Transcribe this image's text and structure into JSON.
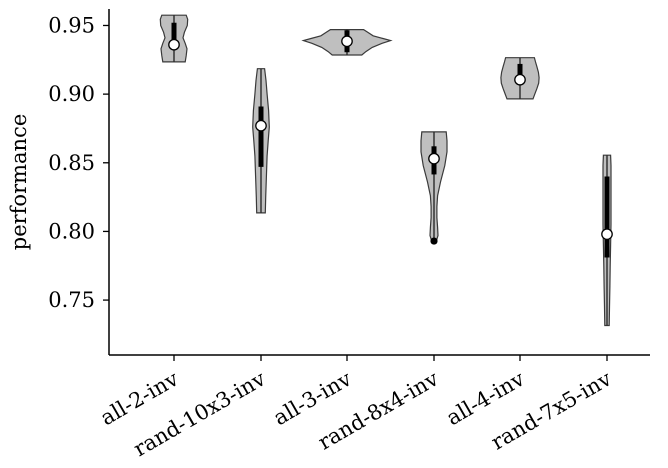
{
  "chart_data": {
    "type": "violin",
    "ylabel": "performance",
    "xlabel": "",
    "ylim": [
      0.71,
      0.962
    ],
    "yticks": [
      0.75,
      0.8,
      0.85,
      0.9,
      0.95
    ],
    "ytick_labels": [
      "0.75",
      "0.80",
      "0.85",
      "0.90",
      "0.95"
    ],
    "grid": false,
    "fill_color": "#bfbfbf",
    "categories": [
      "all-2-inv",
      "rand-10x3-inv",
      "all-3-inv",
      "rand-8x4-inv",
      "all-4-inv",
      "rand-7x5-inv"
    ],
    "violins": [
      {
        "category": "all-2-inv",
        "min": 0.9235,
        "max": 0.9575,
        "q1": 0.9335,
        "q3": 0.952,
        "median": 0.936,
        "outliers": [],
        "profile": [
          [
            0.9235,
            0.62
          ],
          [
            0.928,
            0.68
          ],
          [
            0.933,
            0.72
          ],
          [
            0.937,
            0.62
          ],
          [
            0.941,
            0.5
          ],
          [
            0.945,
            0.58
          ],
          [
            0.95,
            0.74
          ],
          [
            0.9545,
            0.76
          ],
          [
            0.9575,
            0.68
          ]
        ]
      },
      {
        "category": "rand-10x3-inv",
        "min": 0.8135,
        "max": 0.9185,
        "q1": 0.847,
        "q3": 0.891,
        "median": 0.877,
        "outliers": [],
        "profile": [
          [
            0.8135,
            0.24
          ],
          [
            0.825,
            0.26
          ],
          [
            0.84,
            0.3
          ],
          [
            0.855,
            0.34
          ],
          [
            0.866,
            0.4
          ],
          [
            0.876,
            0.46
          ],
          [
            0.888,
            0.42
          ],
          [
            0.9,
            0.34
          ],
          [
            0.91,
            0.28
          ],
          [
            0.9185,
            0.2
          ]
        ]
      },
      {
        "category": "all-3-inv",
        "min": 0.9285,
        "max": 0.947,
        "q1": 0.9305,
        "q3": 0.9465,
        "median": 0.9385,
        "outliers": [],
        "profile": [
          [
            0.9285,
            0.82
          ],
          [
            0.931,
            1.05
          ],
          [
            0.934,
            1.4
          ],
          [
            0.937,
            1.95
          ],
          [
            0.939,
            2.42
          ],
          [
            0.9405,
            2.0
          ],
          [
            0.9425,
            1.45
          ],
          [
            0.945,
            1.15
          ],
          [
            0.947,
            0.92
          ]
        ]
      },
      {
        "category": "rand-8x4-inv",
        "min": 0.7935,
        "max": 0.8725,
        "q1": 0.8415,
        "q3": 0.862,
        "median": 0.853,
        "outliers": [
          0.793
        ],
        "profile": [
          [
            0.7935,
            0.14
          ],
          [
            0.797,
            0.22
          ],
          [
            0.803,
            0.2
          ],
          [
            0.81,
            0.16
          ],
          [
            0.818,
            0.16
          ],
          [
            0.826,
            0.2
          ],
          [
            0.836,
            0.36
          ],
          [
            0.848,
            0.6
          ],
          [
            0.858,
            0.72
          ],
          [
            0.866,
            0.72
          ],
          [
            0.8725,
            0.68
          ]
        ]
      },
      {
        "category": "all-4-inv",
        "min": 0.8965,
        "max": 0.9265,
        "q1": 0.9075,
        "q3": 0.922,
        "median": 0.9105,
        "outliers": [],
        "profile": [
          [
            0.8965,
            0.72
          ],
          [
            0.9,
            0.82
          ],
          [
            0.904,
            0.94
          ],
          [
            0.908,
            1.04
          ],
          [
            0.912,
            1.06
          ],
          [
            0.916,
            1.02
          ],
          [
            0.92,
            0.94
          ],
          [
            0.9235,
            0.86
          ],
          [
            0.9265,
            0.8
          ]
        ]
      },
      {
        "category": "rand-7x5-inv",
        "min": 0.7315,
        "max": 0.8555,
        "q1": 0.781,
        "q3": 0.84,
        "median": 0.798,
        "outliers": [],
        "profile": [
          [
            0.7315,
            0.12
          ],
          [
            0.745,
            0.14
          ],
          [
            0.76,
            0.16
          ],
          [
            0.775,
            0.18
          ],
          [
            0.79,
            0.2
          ],
          [
            0.805,
            0.22
          ],
          [
            0.82,
            0.22
          ],
          [
            0.835,
            0.22
          ],
          [
            0.848,
            0.22
          ],
          [
            0.8555,
            0.2
          ]
        ]
      }
    ]
  }
}
